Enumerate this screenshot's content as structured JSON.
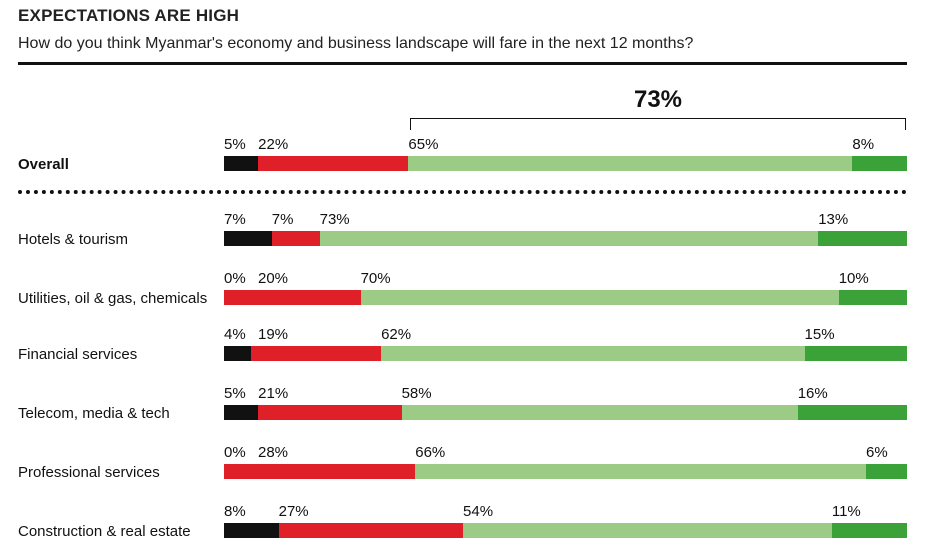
{
  "header": {
    "title": "EXPECTATIONS ARE HIGH",
    "subtitle": "How do you think Myanmar's economy and business landscape will fare in the next 12 months?"
  },
  "bracket_label": "73%",
  "colors": {
    "seg1": "#111111",
    "seg2": "#e02028",
    "seg3": "#9ccb86",
    "seg4": "#3aa238"
  },
  "chart_data": {
    "type": "bar",
    "orientation": "horizontal",
    "stacked": true,
    "categories": [
      "Overall",
      "Hotels & tourism",
      "Utilities, oil & gas, chemicals",
      "Financial services",
      "Telecom, media & tech",
      "Professional services",
      "Construction & real estate"
    ],
    "series": [
      {
        "values": [
          5,
          7,
          0,
          4,
          5,
          0,
          8
        ],
        "labels": [
          "5%",
          "7%",
          "0%",
          "4%",
          "5%",
          "0%",
          "8%"
        ]
      },
      {
        "values": [
          22,
          7,
          20,
          19,
          21,
          28,
          27
        ],
        "labels": [
          "22%",
          "7%",
          "20%",
          "19%",
          "21%",
          "28%",
          "27%"
        ]
      },
      {
        "values": [
          65,
          73,
          70,
          62,
          58,
          66,
          54
        ],
        "labels": [
          "65%",
          "73%",
          "70%",
          "62%",
          "58%",
          "66%",
          "54%"
        ]
      },
      {
        "values": [
          8,
          13,
          10,
          15,
          16,
          6,
          11
        ],
        "labels": [
          "8%",
          "13%",
          "10%",
          "15%",
          "16%",
          "6%",
          "11%"
        ]
      }
    ],
    "xlim": [
      0,
      100
    ],
    "title": "EXPECTATIONS ARE HIGH",
    "grid": false,
    "legend": "none"
  }
}
